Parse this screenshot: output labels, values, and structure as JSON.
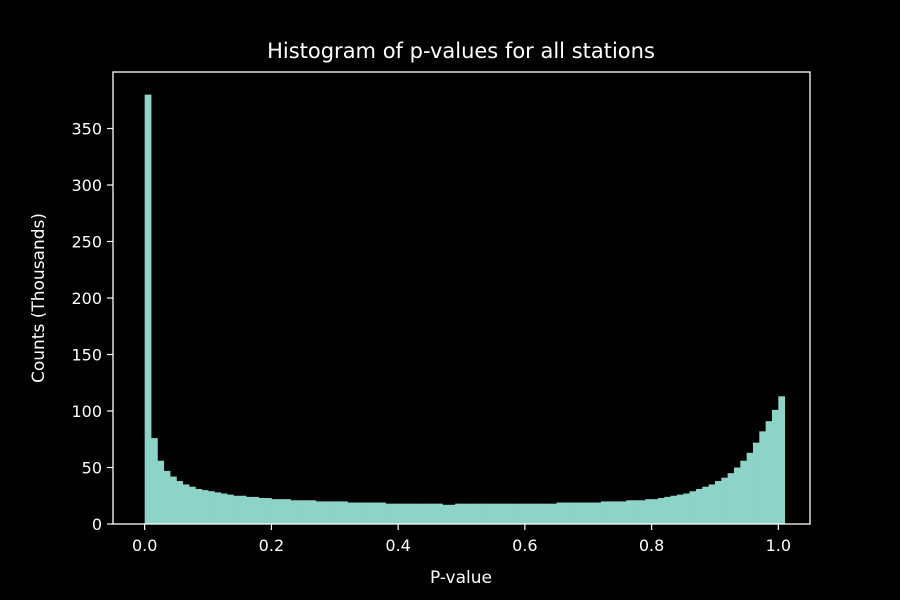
{
  "chart_data": {
    "type": "bar",
    "title": "Histogram of p-values for all stations",
    "xlabel": "P-value",
    "ylabel": "Counts (Thousands)",
    "xlim": [
      -0.05,
      1.05
    ],
    "ylim": [
      0,
      400
    ],
    "xticks": [
      0.0,
      0.2,
      0.4,
      0.6,
      0.8,
      1.0
    ],
    "xtick_labels": [
      "0.0",
      "0.2",
      "0.4",
      "0.6",
      "0.8",
      "1.0"
    ],
    "yticks": [
      0,
      50,
      100,
      150,
      200,
      250,
      300,
      350
    ],
    "ytick_labels": [
      "0",
      "50",
      "100",
      "150",
      "200",
      "250",
      "300",
      "350"
    ],
    "bin_width": 0.01,
    "bin_start": 0.0,
    "bar_color": "#8dd3c7",
    "background_color": "#000000",
    "grid": false,
    "values": [
      380,
      76,
      56,
      47,
      42,
      38,
      35,
      33,
      31,
      30,
      29,
      28,
      27,
      26,
      25,
      25,
      24,
      24,
      23,
      23,
      22,
      22,
      22,
      21,
      21,
      21,
      21,
      20,
      20,
      20,
      20,
      20,
      19,
      19,
      19,
      19,
      19,
      19,
      18,
      18,
      18,
      18,
      18,
      18,
      18,
      18,
      18,
      17,
      17,
      18,
      18,
      18,
      18,
      18,
      18,
      18,
      18,
      18,
      18,
      18,
      18,
      18,
      18,
      18,
      18,
      19,
      19,
      19,
      19,
      19,
      19,
      19,
      20,
      20,
      20,
      20,
      21,
      21,
      21,
      22,
      22,
      23,
      24,
      25,
      26,
      27,
      29,
      31,
      33,
      35,
      38,
      41,
      45,
      50,
      56,
      63,
      72,
      82,
      91,
      101,
      113
    ]
  }
}
